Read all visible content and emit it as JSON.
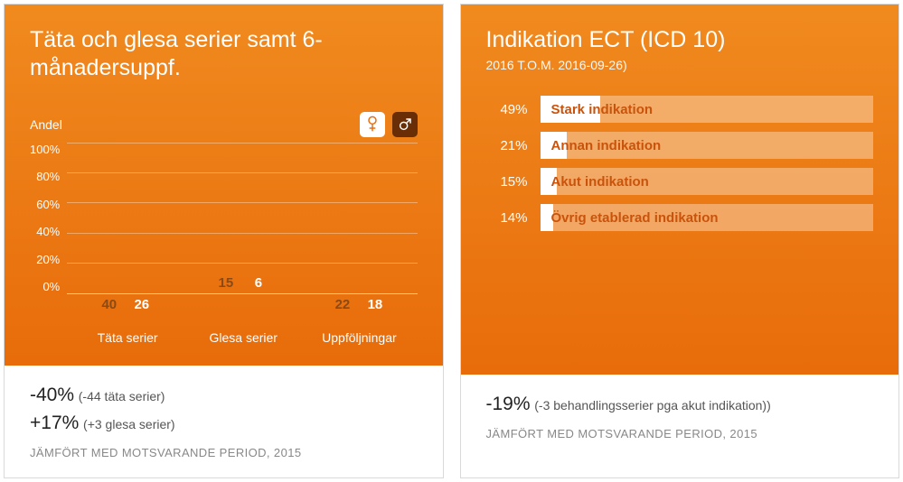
{
  "left": {
    "title": "Täta och glesa serier samt 6-månadersuppf.",
    "gradient_top": "#f08a1f",
    "gradient_bottom": "#e86c0a",
    "y_axis_label": "Andel",
    "y_ticks": [
      "100%",
      "80%",
      "60%",
      "40%",
      "20%",
      "0%"
    ],
    "y_max": 100,
    "gender_icons": {
      "female": {
        "bg": "#ffffff",
        "stroke": "#e86c0a"
      },
      "male": {
        "bg": "#6a2e06",
        "stroke": "#ffffff"
      }
    },
    "bar_colors": {
      "female": "#ffffff",
      "male": "#6a2e06"
    },
    "bar_label_colors": {
      "female": "#8a4a16",
      "male": "#ffffff"
    },
    "groups": [
      {
        "label": "Täta serier",
        "female": 40,
        "male": 26,
        "male_bar_pct": 50
      },
      {
        "label": "Glesa serier",
        "female": 15,
        "male": 6,
        "male_bar_pct": 10
      },
      {
        "label": "Uppföljningar",
        "female": 22,
        "male": 18,
        "male_bar_pct": 34
      }
    ],
    "footer": {
      "line1_big": "-40%",
      "line1_paren": "(-44 täta serier)",
      "line2_big": "+17%",
      "line2_paren": "(+3 glesa serier)",
      "compare": "JÄMFÖRT MED MOTSVARANDE PERIOD, 2015"
    }
  },
  "right": {
    "title": "Indikation ECT (ICD 10)",
    "subtitle": "2016 T.O.M. 2016-09-26)",
    "gradient_top": "#f08a1f",
    "gradient_bottom": "#e86c0a",
    "track_color": "rgba(255,255,255,0.35)",
    "fill_color": "#ffffff",
    "label_color": "#c9530b",
    "bars": [
      {
        "pct": 49,
        "label": "Stark indikation",
        "fill_pct": 18
      },
      {
        "pct": 21,
        "label": "Annan indikation",
        "fill_pct": 8
      },
      {
        "pct": 15,
        "label": "Akut indikation",
        "fill_pct": 5
      },
      {
        "pct": 14,
        "label": "Övrig etablerad indikation",
        "fill_pct": 4
      }
    ],
    "footer": {
      "line1_big": "-19%",
      "line1_paren": "(-3 behandlingsserier pga akut indikation))",
      "compare": "JÄMFÖRT MED MOTSVARANDE PERIOD, 2015"
    }
  }
}
